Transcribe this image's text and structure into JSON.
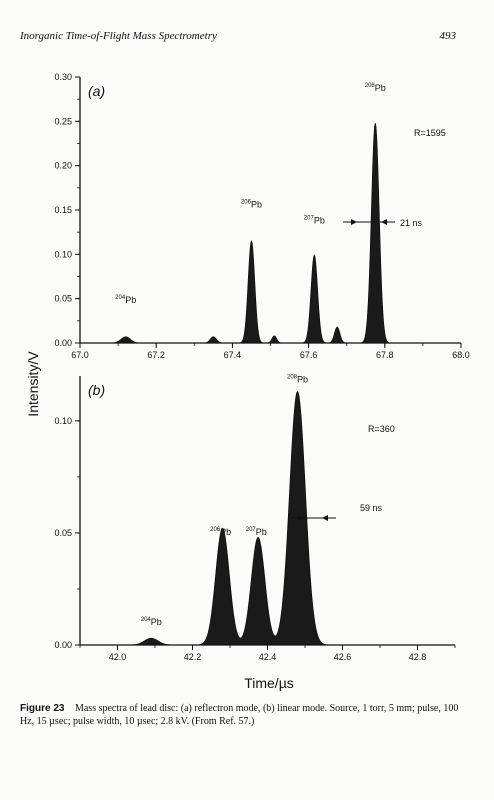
{
  "header": {
    "title": "Inorganic Time-of-Flight Mass Spectrometry",
    "page": "493"
  },
  "figure": {
    "ylabel": "Intensity/V",
    "xlabel": "Time/µs"
  },
  "caption": {
    "label": "Figure 23",
    "text": "Mass spectra of lead disc: (a) reflectron mode, (b) linear mode. Source, 1 torr, 5 mm; pulse, 100 Hz, 15 µsec; pulse width, 10 µsec; 2.8 kV. (From Ref. 57.)"
  },
  "chart_data": [
    {
      "type": "area",
      "panel_label": "(a)",
      "xlim": [
        67.0,
        68.0
      ],
      "ylim": [
        0.0,
        0.3
      ],
      "xticks": [
        "67.0",
        "67.2",
        "67.4",
        "67.6",
        "67.8",
        "68.0"
      ],
      "yticks": [
        "0.00",
        "0.05",
        "0.10",
        "0.15",
        "0.20",
        "0.25",
        "0.30"
      ],
      "peaks": [
        {
          "x": 67.12,
          "y": 0.007,
          "w": 0.012
        },
        {
          "x": 67.35,
          "y": 0.007,
          "w": 0.008
        },
        {
          "x": 67.45,
          "y": 0.115,
          "w": 0.0085
        },
        {
          "x": 67.51,
          "y": 0.008,
          "w": 0.006
        },
        {
          "x": 67.615,
          "y": 0.099,
          "w": 0.0085
        },
        {
          "x": 67.675,
          "y": 0.018,
          "w": 0.007
        },
        {
          "x": 67.775,
          "y": 0.248,
          "w": 0.01
        }
      ],
      "annotations": [
        {
          "mass": "204",
          "element": "Pb",
          "x": 67.12,
          "y": 0.045
        },
        {
          "mass": "206",
          "element": "Pb",
          "x": 67.45,
          "y": 0.153
        },
        {
          "mass": "207",
          "element": "Pb",
          "x": 67.615,
          "y": 0.135
        },
        {
          "mass": "208",
          "element": "Pb",
          "x": 67.775,
          "y": 0.284
        }
      ],
      "resolution": "R=1595",
      "fwhm": "21 ns"
    },
    {
      "type": "area",
      "panel_label": "(b)",
      "xlim": [
        41.9,
        42.9
      ],
      "ylim": [
        0.0,
        0.12
      ],
      "xticks": [
        "42.0",
        "42.2",
        "42.4",
        "42.6",
        "42.8"
      ],
      "yticks": [
        "0.00",
        "0.05",
        "0.10"
      ],
      "peaks": [
        {
          "x": 42.09,
          "y": 0.003,
          "w": 0.018
        },
        {
          "x": 42.28,
          "y": 0.052,
          "w": 0.018
        },
        {
          "x": 42.375,
          "y": 0.048,
          "w": 0.018
        },
        {
          "x": 42.48,
          "y": 0.113,
          "w": 0.021
        }
      ],
      "annotations": [
        {
          "mass": "204",
          "element": "Pb",
          "x": 42.09,
          "y": 0.009
        },
        {
          "mass": "206",
          "element": "Pb",
          "x": 42.275,
          "y": 0.049
        },
        {
          "mass": "207",
          "element": "Pb",
          "x": 42.37,
          "y": 0.049
        },
        {
          "mass": "208",
          "element": "Pb",
          "x": 42.48,
          "y": 0.117
        }
      ],
      "resolution": "R=360",
      "fwhm": "59 ns"
    }
  ]
}
